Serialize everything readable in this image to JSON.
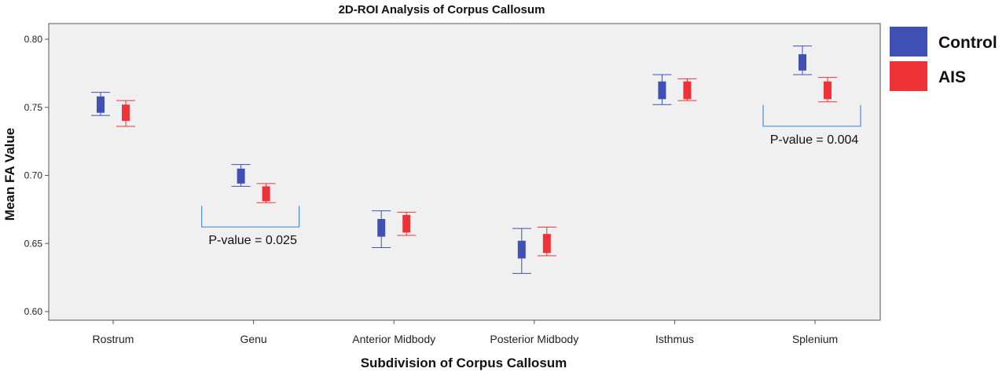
{
  "chart_data": {
    "type": "boxplot",
    "title": "2D-ROI Analysis of Corpus Callosum",
    "xlabel": "Subdivision of Corpus Callosum",
    "ylabel": "Mean FA Value",
    "ylim": [
      0.595,
      0.815
    ],
    "yticks": [
      "0.60",
      "0.65",
      "0.70",
      "0.75",
      "0.80"
    ],
    "categories": [
      "Rostrum",
      "Genu",
      "Anterior Midbody",
      "Posterior Midbody",
      "Isthmus",
      "Splenium"
    ],
    "grid": false,
    "legend_position": "right",
    "series": [
      {
        "name": "Control",
        "color": "#3f51b5",
        "boxes": [
          {
            "min": 0.744,
            "q1": 0.746,
            "q3": 0.758,
            "max": 0.761
          },
          {
            "min": 0.692,
            "q1": 0.694,
            "q3": 0.705,
            "max": 0.708
          },
          {
            "min": 0.647,
            "q1": 0.655,
            "q3": 0.668,
            "max": 0.674
          },
          {
            "min": 0.628,
            "q1": 0.639,
            "q3": 0.652,
            "max": 0.661
          },
          {
            "min": 0.752,
            "q1": 0.756,
            "q3": 0.769,
            "max": 0.774
          },
          {
            "min": 0.774,
            "q1": 0.777,
            "q3": 0.789,
            "max": 0.795
          }
        ]
      },
      {
        "name": "AIS",
        "color": "#ee3338",
        "boxes": [
          {
            "min": 0.736,
            "q1": 0.74,
            "q3": 0.752,
            "max": 0.755
          },
          {
            "min": 0.68,
            "q1": 0.681,
            "q3": 0.692,
            "max": 0.694
          },
          {
            "min": 0.656,
            "q1": 0.658,
            "q3": 0.671,
            "max": 0.673
          },
          {
            "min": 0.641,
            "q1": 0.643,
            "q3": 0.657,
            "max": 0.662
          },
          {
            "min": 0.755,
            "q1": 0.756,
            "q3": 0.769,
            "max": 0.771
          },
          {
            "min": 0.754,
            "q1": 0.756,
            "q3": 0.769,
            "max": 0.772
          }
        ]
      }
    ],
    "annotations": [
      {
        "text": "P-value = 0.025",
        "category": "Genu"
      },
      {
        "text": "P-value = 0.004",
        "category": "Splenium"
      }
    ]
  }
}
